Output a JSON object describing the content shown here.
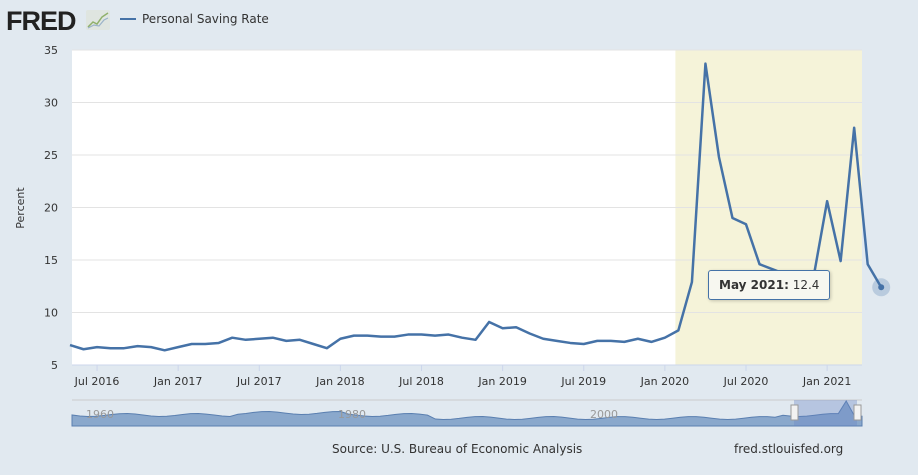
{
  "header": {
    "logo": "FRED",
    "logo_icon": "chart-sparkline-icon"
  },
  "chart_data": {
    "type": "line",
    "title": "",
    "legend": [
      "Personal Saving Rate"
    ],
    "legend_placement": "top-left",
    "ylabel": "Percent",
    "xlabel": "",
    "ylim": [
      5,
      35
    ],
    "yticks": [
      5,
      10,
      15,
      20,
      25,
      30,
      35
    ],
    "xtick_labels": [
      "Jul 2016",
      "Jan 2017",
      "Jul 2017",
      "Jan 2018",
      "Jul 2018",
      "Jan 2019",
      "Jul 2019",
      "Jan 2020",
      "Jul 2020",
      "Jan 2021"
    ],
    "start": "May 2016",
    "series": [
      {
        "name": "Personal Saving Rate",
        "color": "#4572a7",
        "values": [
          6.9,
          6.5,
          6.7,
          6.6,
          6.6,
          6.8,
          6.7,
          6.4,
          6.7,
          7.0,
          7.0,
          7.1,
          7.6,
          7.4,
          7.5,
          7.6,
          7.3,
          7.4,
          7.0,
          6.6,
          7.5,
          7.8,
          7.8,
          7.7,
          7.7,
          7.9,
          7.9,
          7.8,
          7.9,
          7.6,
          7.4,
          9.1,
          8.5,
          8.6,
          8.0,
          7.5,
          7.3,
          7.1,
          7.0,
          7.3,
          7.3,
          7.2,
          7.5,
          7.2,
          7.6,
          8.3,
          12.9,
          33.7,
          24.8,
          19.0,
          18.4,
          14.6,
          14.1,
          13.6,
          13.1,
          13.4,
          20.6,
          14.9,
          27.6,
          14.6,
          12.4
        ]
      }
    ],
    "shaded_region": {
      "from": "Feb 2020",
      "to": "May 2021",
      "color": "#f5f3d9"
    },
    "grid": true,
    "navigator": {
      "labels": [
        "1960",
        "1980",
        "2000"
      ]
    }
  },
  "tooltip": {
    "date": "May 2021:",
    "value": "12.4"
  },
  "footer": {
    "source": "Source: U.S. Bureau of Economic Analysis",
    "site": "fred.stlouisfed.org"
  }
}
